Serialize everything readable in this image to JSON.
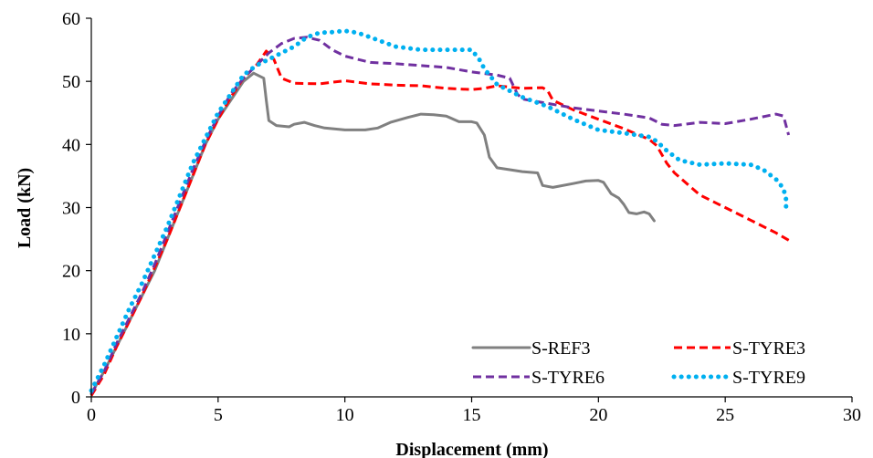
{
  "chart_data": {
    "type": "line",
    "xlabel": "Displacement (mm)",
    "ylabel": "Load (kN)",
    "xlim": [
      0,
      30
    ],
    "ylim": [
      0,
      60
    ],
    "x_ticks": [
      0,
      5,
      10,
      15,
      20,
      25,
      30
    ],
    "y_ticks": [
      0,
      10,
      20,
      30,
      40,
      50,
      60
    ],
    "grid": false,
    "legend_position": "bottom-right",
    "series": [
      {
        "name": "S-REF3",
        "color": "#808080",
        "style": "solid",
        "points": [
          [
            0,
            0.5
          ],
          [
            0.5,
            4
          ],
          [
            1,
            8
          ],
          [
            1.5,
            12
          ],
          [
            2,
            16
          ],
          [
            2.5,
            20
          ],
          [
            3,
            25
          ],
          [
            3.5,
            30
          ],
          [
            4,
            35
          ],
          [
            4.5,
            40
          ],
          [
            5,
            44
          ],
          [
            5.5,
            47
          ],
          [
            6,
            50
          ],
          [
            6.4,
            51.3
          ],
          [
            6.8,
            50.5
          ],
          [
            6.9,
            47
          ],
          [
            7,
            43.8
          ],
          [
            7.3,
            43
          ],
          [
            7.8,
            42.8
          ],
          [
            8,
            43.2
          ],
          [
            8.4,
            43.5
          ],
          [
            8.8,
            43
          ],
          [
            9.2,
            42.6
          ],
          [
            10,
            42.3
          ],
          [
            10.8,
            42.3
          ],
          [
            11.3,
            42.6
          ],
          [
            11.8,
            43.5
          ],
          [
            12.5,
            44.3
          ],
          [
            13,
            44.8
          ],
          [
            13.5,
            44.7
          ],
          [
            14,
            44.5
          ],
          [
            14.5,
            43.6
          ],
          [
            15,
            43.6
          ],
          [
            15.2,
            43.4
          ],
          [
            15.5,
            41.5
          ],
          [
            15.7,
            38
          ],
          [
            16,
            36.3
          ],
          [
            17,
            35.7
          ],
          [
            17.6,
            35.5
          ],
          [
            17.8,
            33.5
          ],
          [
            18.2,
            33.2
          ],
          [
            19,
            33.8
          ],
          [
            19.5,
            34.2
          ],
          [
            20,
            34.3
          ],
          [
            20.2,
            34
          ],
          [
            20.5,
            32.2
          ],
          [
            20.8,
            31.5
          ],
          [
            21,
            30.5
          ],
          [
            21.2,
            29.2
          ],
          [
            21.5,
            29
          ],
          [
            21.8,
            29.3
          ],
          [
            22,
            29
          ],
          [
            22.2,
            27.9
          ]
        ]
      },
      {
        "name": "S-TYRE3",
        "color": "#ff0000",
        "style": "dashed",
        "points": [
          [
            0,
            0.2
          ],
          [
            0.5,
            3.5
          ],
          [
            1,
            8
          ],
          [
            1.5,
            12
          ],
          [
            2,
            16
          ],
          [
            2.5,
            20.5
          ],
          [
            3,
            25
          ],
          [
            3.5,
            30
          ],
          [
            4,
            35
          ],
          [
            4.5,
            40
          ],
          [
            5,
            44
          ],
          [
            5.5,
            47.5
          ],
          [
            6,
            50.5
          ],
          [
            6.5,
            52.5
          ],
          [
            6.9,
            54.8
          ],
          [
            7.2,
            53.5
          ],
          [
            7.5,
            50.5
          ],
          [
            8,
            49.7
          ],
          [
            9,
            49.6
          ],
          [
            10,
            50.1
          ],
          [
            11,
            49.6
          ],
          [
            12,
            49.4
          ],
          [
            13,
            49.3
          ],
          [
            14,
            48.9
          ],
          [
            15,
            48.7
          ],
          [
            15.5,
            48.9
          ],
          [
            16,
            49.3
          ],
          [
            17,
            48.9
          ],
          [
            17.8,
            49
          ],
          [
            18,
            48.5
          ],
          [
            18.2,
            47
          ],
          [
            19,
            45.5
          ],
          [
            20,
            44
          ],
          [
            21,
            42.5
          ],
          [
            22,
            40.8
          ],
          [
            22.3,
            39.8
          ],
          [
            22.7,
            37
          ],
          [
            23,
            35.5
          ],
          [
            24,
            32
          ],
          [
            25,
            30
          ],
          [
            26,
            28
          ],
          [
            27,
            26
          ],
          [
            27.6,
            24.6
          ]
        ]
      },
      {
        "name": "S-TYRE6",
        "color": "#7030a0",
        "style": "dashed",
        "points": [
          [
            0,
            0.5
          ],
          [
            0.5,
            4
          ],
          [
            1,
            8.5
          ],
          [
            1.5,
            12.5
          ],
          [
            2,
            16.5
          ],
          [
            2.5,
            21
          ],
          [
            3,
            26
          ],
          [
            3.5,
            31
          ],
          [
            4,
            36
          ],
          [
            4.5,
            40.5
          ],
          [
            5,
            44.5
          ],
          [
            5.5,
            48
          ],
          [
            6,
            50.5
          ],
          [
            6.5,
            52.5
          ],
          [
            7,
            54.5
          ],
          [
            7.5,
            56
          ],
          [
            8,
            56.8
          ],
          [
            8.5,
            57
          ],
          [
            9,
            56.5
          ],
          [
            9.5,
            55
          ],
          [
            10,
            54
          ],
          [
            10.5,
            53.5
          ],
          [
            11,
            53
          ],
          [
            12,
            52.8
          ],
          [
            13,
            52.5
          ],
          [
            14,
            52.2
          ],
          [
            15,
            51.5
          ],
          [
            16,
            51
          ],
          [
            16.5,
            50.5
          ],
          [
            16.8,
            48
          ],
          [
            17,
            47.2
          ],
          [
            18,
            46.5
          ],
          [
            19,
            45.8
          ],
          [
            20,
            45.3
          ],
          [
            21,
            44.8
          ],
          [
            22,
            44.2
          ],
          [
            22.5,
            43.2
          ],
          [
            23,
            43
          ],
          [
            24,
            43.5
          ],
          [
            25,
            43.3
          ],
          [
            26,
            44
          ],
          [
            27,
            44.8
          ],
          [
            27.3,
            44.5
          ],
          [
            27.5,
            41.5
          ]
        ]
      },
      {
        "name": "S-TYRE9",
        "color": "#00b0f0",
        "style": "dotted",
        "points": [
          [
            0,
            1
          ],
          [
            0.5,
            5
          ],
          [
            1,
            9.5
          ],
          [
            1.5,
            14
          ],
          [
            2,
            18
          ],
          [
            2.5,
            22.5
          ],
          [
            3,
            27
          ],
          [
            3.5,
            32
          ],
          [
            4,
            37
          ],
          [
            4.5,
            41
          ],
          [
            5,
            45
          ],
          [
            5.5,
            48
          ],
          [
            6,
            51
          ],
          [
            6.5,
            52.5
          ],
          [
            7,
            53.5
          ],
          [
            7.5,
            54.5
          ],
          [
            8,
            55.5
          ],
          [
            8.5,
            57
          ],
          [
            9,
            57.7
          ],
          [
            9.5,
            57.8
          ],
          [
            10,
            58
          ],
          [
            10.5,
            57.7
          ],
          [
            11,
            57
          ],
          [
            12,
            55.5
          ],
          [
            13,
            55
          ],
          [
            14,
            55
          ],
          [
            15,
            55
          ],
          [
            15.3,
            53.5
          ],
          [
            15.5,
            52
          ],
          [
            16,
            49.5
          ],
          [
            17,
            47.5
          ],
          [
            18,
            46
          ],
          [
            19,
            44
          ],
          [
            20,
            42.3
          ],
          [
            21,
            41.8
          ],
          [
            22,
            41.2
          ],
          [
            22.3,
            40.5
          ],
          [
            22.7,
            39
          ],
          [
            23.2,
            37.5
          ],
          [
            24,
            36.8
          ],
          [
            25,
            37
          ],
          [
            26,
            36.8
          ],
          [
            26.5,
            36
          ],
          [
            27,
            34.5
          ],
          [
            27.3,
            33
          ],
          [
            27.4,
            31.3
          ],
          [
            27.4,
            29.9
          ]
        ]
      }
    ]
  }
}
